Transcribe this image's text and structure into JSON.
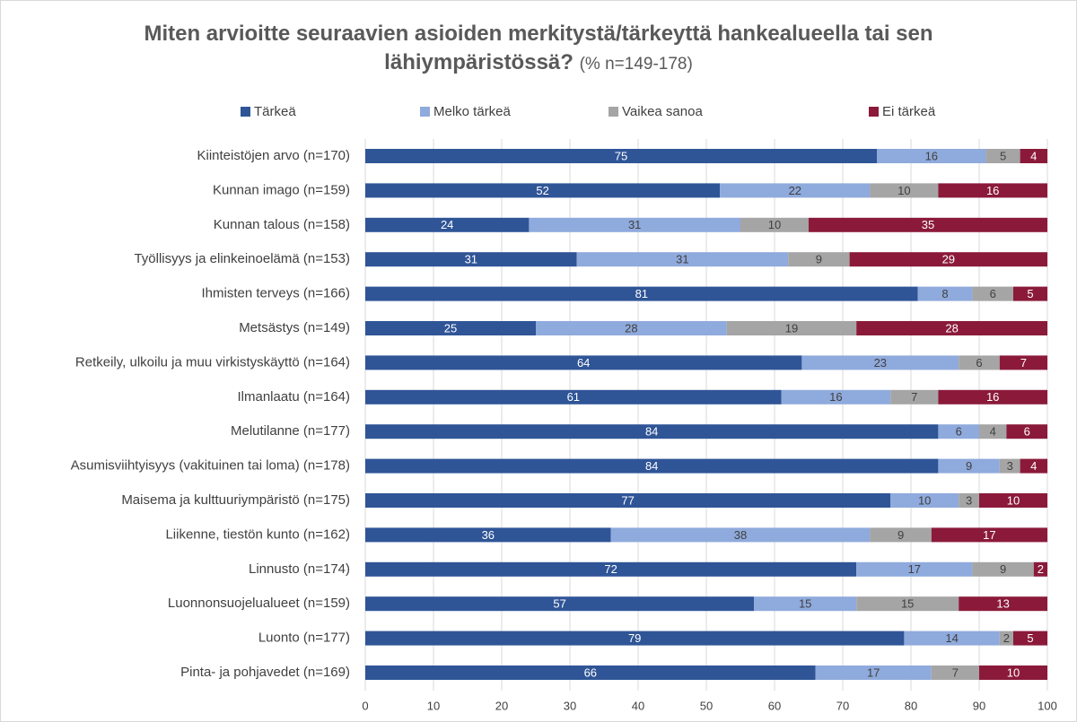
{
  "chart_data": {
    "type": "stacked_bar_horizontal",
    "title": "Miten arvioitte seuraavien asioiden merkitystä/tärkeyttä hankealueella tai sen lähiympäristössä?",
    "subtitle": "(% n=149-178)",
    "categories": [
      "Kiinteistöjen arvo (n=170)",
      "Kunnan imago (n=159)",
      "Kunnan talous (n=158)",
      "Työllisyys ja elinkeinoelämä (n=153)",
      "Ihmisten terveys (n=166)",
      "Metsästys (n=149)",
      "Retkeily, ulkoilu ja muu virkistyskäyttö (n=164)",
      "Ilmanlaatu (n=164)",
      "Melutilanne (n=177)",
      "Asumisviihtyisyys (vakituinen tai loma) (n=178)",
      "Maisema ja kulttuuriympäristö (n=175)",
      "Liikenne, tiestön kunto (n=162)",
      "Linnusto (n=174)",
      "Luonnonsuojelualueet (n=159)",
      "Luonto (n=177)",
      "Pinta- ja pohjavedet (n=169)"
    ],
    "series": [
      {
        "name": "Tärkeä",
        "color": "#2f5597",
        "values": [
          75,
          52,
          24,
          31,
          81,
          25,
          64,
          61,
          84,
          84,
          77,
          36,
          72,
          57,
          79,
          66
        ]
      },
      {
        "name": "Melko tärkeä",
        "color": "#8faadc",
        "values": [
          16,
          22,
          31,
          31,
          8,
          28,
          23,
          16,
          6,
          9,
          10,
          38,
          17,
          15,
          14,
          17
        ]
      },
      {
        "name": "Vaikea sanoa",
        "color": "#a5a5a5",
        "values": [
          5,
          10,
          10,
          9,
          6,
          19,
          6,
          7,
          4,
          3,
          3,
          9,
          9,
          15,
          2,
          7
        ]
      },
      {
        "name": "Ei tärkeä",
        "color": "#8b1a3a",
        "values": [
          4,
          16,
          35,
          29,
          5,
          28,
          7,
          16,
          6,
          4,
          10,
          17,
          2,
          13,
          5,
          10
        ]
      }
    ],
    "xlim": [
      0,
      100
    ],
    "xticks": [
      0,
      10,
      20,
      30,
      40,
      50,
      60,
      70,
      80,
      90,
      100
    ],
    "grid": true,
    "legend": "top",
    "data_labels": true
  }
}
